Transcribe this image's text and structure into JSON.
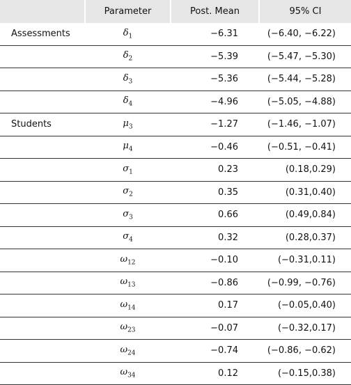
{
  "table": {
    "header": [
      "Parameter",
      "Post. Mean",
      "95% CI"
    ],
    "groups": [
      {
        "label": "Assessments",
        "rows": [
          {
            "symbol": "δ",
            "sub": "1",
            "mean": "−6.31",
            "ci": "(−6.40, −6.22)"
          },
          {
            "symbol": "δ",
            "sub": "2",
            "mean": "−5.39",
            "ci": "(−5.47, −5.30)"
          },
          {
            "symbol": "δ",
            "sub": "3",
            "mean": "−5.36",
            "ci": "(−5.44, −5.28)"
          },
          {
            "symbol": "δ",
            "sub": "4",
            "mean": "−4.96",
            "ci": "(−5.05, −4.88)"
          }
        ]
      },
      {
        "label": "Students",
        "rows": [
          {
            "symbol": "μ",
            "sub": "3",
            "mean": "−1.27",
            "ci": "(−1.46, −1.07)"
          },
          {
            "symbol": "μ",
            "sub": "4",
            "mean": "−0.46",
            "ci": "(−0.51, −0.41)"
          },
          {
            "symbol": "σ",
            "sub": "1",
            "mean": "0.23",
            "ci": "(0.18,0.29)"
          },
          {
            "symbol": "σ",
            "sub": "2",
            "mean": "0.35",
            "ci": "(0.31,0.40)"
          },
          {
            "symbol": "σ",
            "sub": "3",
            "mean": "0.66",
            "ci": "(0.49,0.84)"
          },
          {
            "symbol": "σ",
            "sub": "4",
            "mean": "0.32",
            "ci": "(0.28,0.37)"
          },
          {
            "symbol": "ω",
            "sub": "12",
            "mean": "−0.10",
            "ci": "(−0.31,0.11)"
          },
          {
            "symbol": "ω",
            "sub": "13",
            "mean": "−0.86",
            "ci": "(−0.99, −0.76)"
          },
          {
            "symbol": "ω",
            "sub": "14",
            "mean": "0.17",
            "ci": "(−0.05,0.40)"
          },
          {
            "symbol": "ω",
            "sub": "23",
            "mean": "−0.07",
            "ci": "(−0.32,0.17)"
          },
          {
            "symbol": "ω",
            "sub": "24",
            "mean": "−0.74",
            "ci": "(−0.86, −0.62)"
          },
          {
            "symbol": "ω",
            "sub": "34",
            "mean": "0.12",
            "ci": "(−0.15,0.38)"
          }
        ]
      }
    ]
  }
}
